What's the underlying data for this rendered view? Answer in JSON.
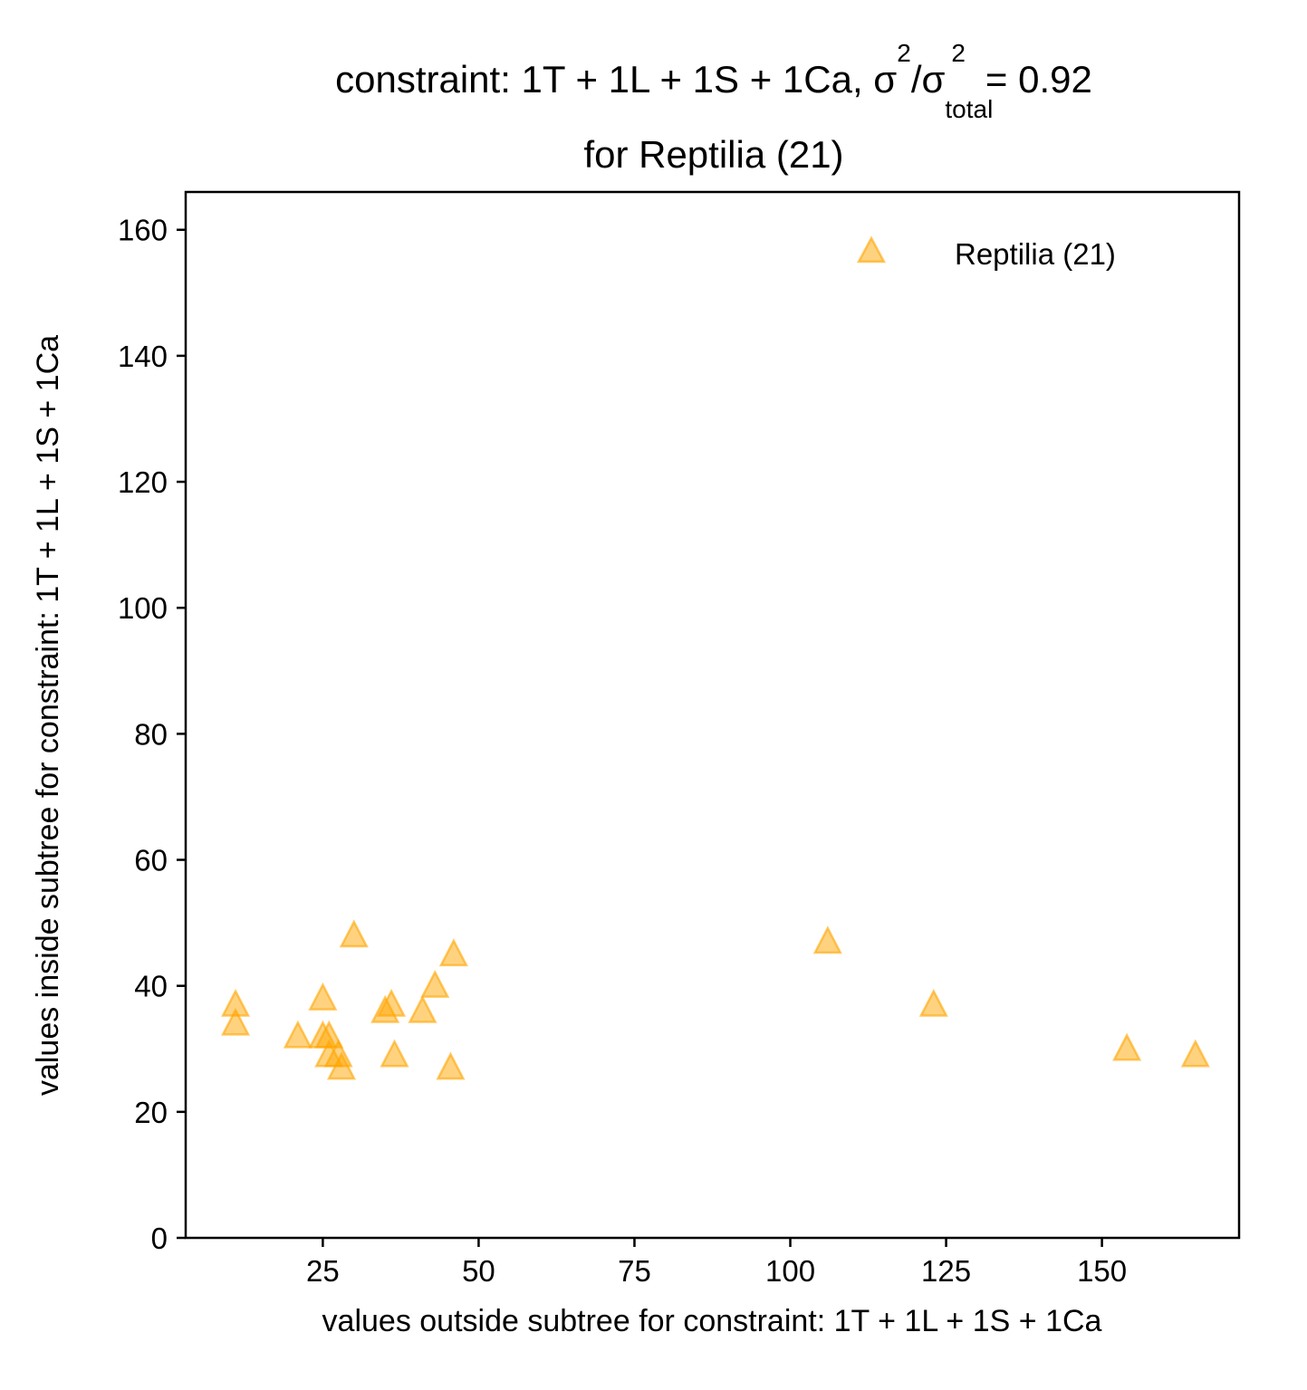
{
  "chart_data": {
    "type": "scatter",
    "title": {
      "main": "constraint: 1T + 1L + 1S + 1Ca, σ",
      "sup1": "2",
      "slash": "/σ",
      "sub": "total",
      "sup2": "2",
      "value": "=  0.92",
      "line2": "for Reptilia (21)"
    },
    "xlabel": "values outside subtree for constraint: 1T + 1L + 1S + 1Ca",
    "ylabel": "values inside subtree for constraint: 1T + 1L + 1S + 1Ca",
    "xlim": [
      3,
      172
    ],
    "ylim": [
      0,
      166
    ],
    "x_ticks": [
      25,
      50,
      75,
      100,
      125,
      150
    ],
    "y_ticks": [
      0,
      20,
      40,
      60,
      80,
      100,
      120,
      140,
      160
    ],
    "grid": false,
    "legend_position": "top-right",
    "series": [
      {
        "name": "Reptilia (21)",
        "marker": "triangle",
        "color": "#FFA500",
        "points": [
          {
            "x": 11,
            "y": 37
          },
          {
            "x": 11,
            "y": 34
          },
          {
            "x": 21,
            "y": 32
          },
          {
            "x": 25,
            "y": 38
          },
          {
            "x": 25,
            "y": 32
          },
          {
            "x": 26,
            "y": 32
          },
          {
            "x": 26,
            "y": 29
          },
          {
            "x": 27.5,
            "y": 29
          },
          {
            "x": 28,
            "y": 27
          },
          {
            "x": 30,
            "y": 48
          },
          {
            "x": 35,
            "y": 36
          },
          {
            "x": 36,
            "y": 37
          },
          {
            "x": 36.5,
            "y": 29
          },
          {
            "x": 41,
            "y": 36
          },
          {
            "x": 43,
            "y": 40
          },
          {
            "x": 45.5,
            "y": 27
          },
          {
            "x": 46,
            "y": 45
          },
          {
            "x": 106,
            "y": 47
          },
          {
            "x": 123,
            "y": 37
          },
          {
            "x": 154,
            "y": 30
          },
          {
            "x": 165,
            "y": 29
          }
        ]
      }
    ]
  }
}
